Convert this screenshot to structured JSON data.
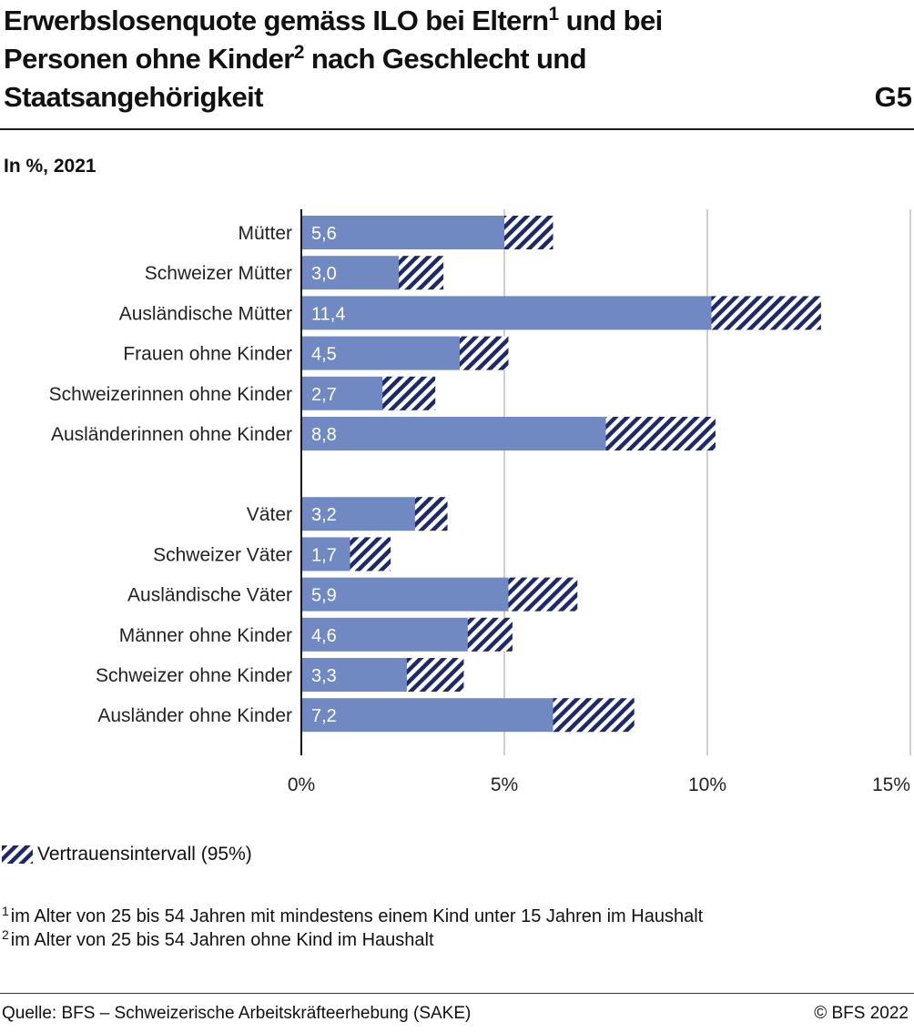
{
  "header": {
    "title_part1": "Erwerbslosenquote gemäss ILO bei Eltern",
    "title_sup1": "1",
    "title_part2": " und bei Personen ohne Kinder",
    "title_sup2": "2",
    "title_part3": " nach Geschlecht und Staatsangehörigkeit",
    "code": "G5",
    "subtitle": "In %, 2021"
  },
  "legend": {
    "label": "Vertrauensintervall (95%)"
  },
  "notes": {
    "note1_marker": "1",
    "note1": "im Alter von 25 bis 54 Jahren mit mindestens einem Kind unter 15 Jahren im Haushalt",
    "note2_marker": "2",
    "note2": "im Alter von 25 bis 54 Jahren ohne Kind im Haushalt"
  },
  "footer": {
    "source": "Quelle: BFS – Schweizerische Arbeitskräfteerhebung (SAKE)",
    "copyright": "© BFS 2022"
  },
  "colors": {
    "bar": "#7189c2",
    "interval": "#1d2a67",
    "grid": "#cfcfcf",
    "axis": "#111111"
  },
  "chart_data": {
    "type": "bar",
    "orientation": "horizontal",
    "xlim": [
      0,
      15
    ],
    "ticks": [
      0,
      5,
      10,
      15
    ],
    "tick_labels": [
      "0%",
      "5%",
      "10%",
      "15%"
    ],
    "grid": true,
    "groups": [
      {
        "categories": [
          "Mütter",
          "Schweizer Mütter",
          "Ausländische Mütter",
          "Frauen ohne Kinder",
          "Schweizerinnen ohne Kinder",
          "Ausländerinnen ohne Kinder"
        ],
        "values": [
          5.6,
          3.0,
          11.4,
          4.5,
          2.7,
          8.8
        ],
        "value_labels": [
          "5,6",
          "3,0",
          "11,4",
          "4,5",
          "2,7",
          "8,8"
        ],
        "ci_low": [
          5.0,
          2.4,
          10.1,
          3.9,
          2.0,
          7.5
        ],
        "ci_high": [
          6.2,
          3.5,
          12.8,
          5.1,
          3.3,
          10.2
        ]
      },
      {
        "categories": [
          "Väter",
          "Schweizer Väter",
          "Ausländische Väter",
          "Männer ohne Kinder",
          "Schweizer ohne Kinder",
          "Ausländer ohne Kinder"
        ],
        "values": [
          3.2,
          1.7,
          5.9,
          4.6,
          3.3,
          7.2
        ],
        "value_labels": [
          "3,2",
          "1,7",
          "5,9",
          "4,6",
          "3,3",
          "7,2"
        ],
        "ci_low": [
          2.8,
          1.2,
          5.1,
          4.1,
          2.6,
          6.2
        ],
        "ci_high": [
          3.6,
          2.2,
          6.8,
          5.2,
          4.0,
          8.2
        ]
      }
    ]
  }
}
